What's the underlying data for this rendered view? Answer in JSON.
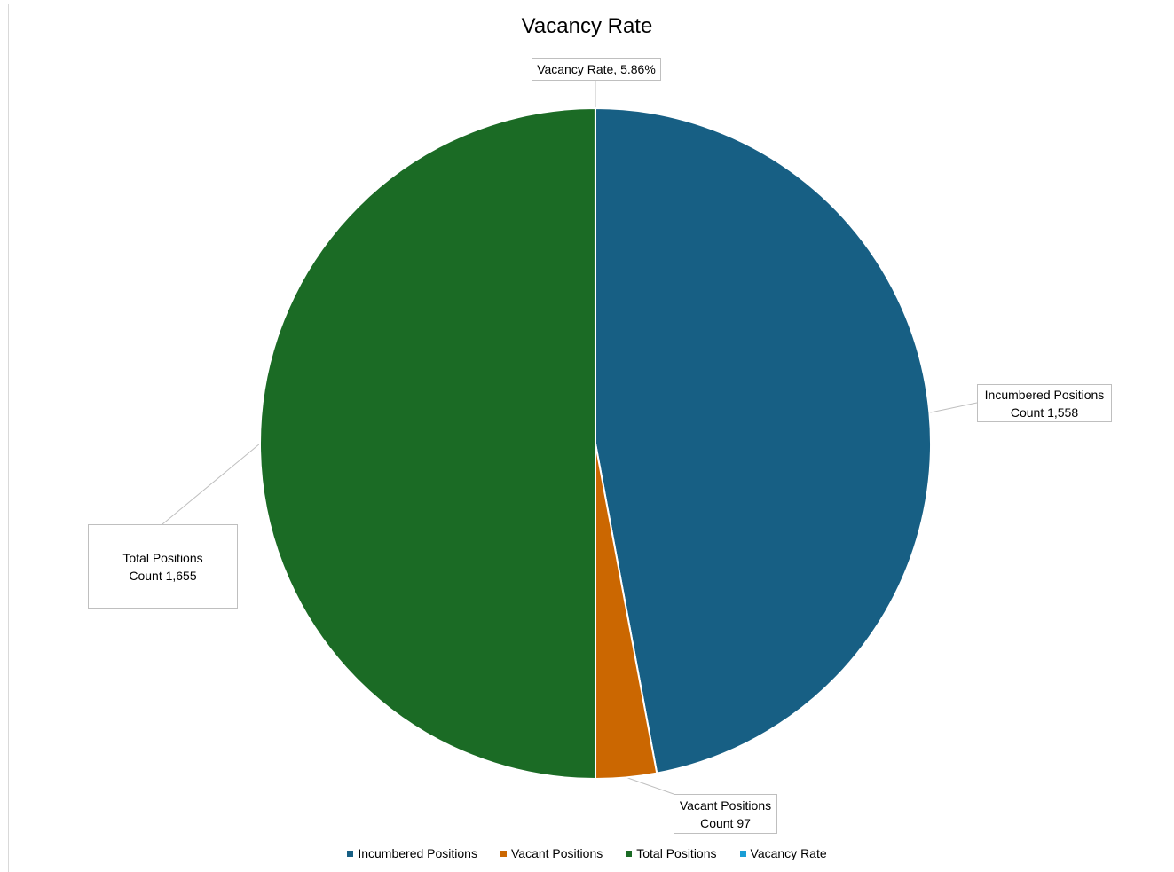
{
  "chart_data": {
    "type": "pie",
    "title": "Vacancy Rate",
    "series": [
      {
        "name": "Incumbered Positions",
        "value": 1558,
        "label_line1": "Incumbered Positions",
        "label_line2": "Count 1,558",
        "color": "#175f84"
      },
      {
        "name": "Vacant Positions",
        "value": 97,
        "label_line1": "Vacant Positions",
        "label_line2": "Count 97",
        "color": "#cb6701"
      },
      {
        "name": "Total Positions",
        "value": 1655,
        "label_line1": "Total Positions",
        "label_line2": "Count 1,655",
        "color": "#1b6b25"
      },
      {
        "name": "Vacancy Rate",
        "value": 0.0586,
        "label_line1": "Vacancy Rate, 5.86%",
        "label_line2": "",
        "color": "#1a9ed6"
      }
    ],
    "legend_position": "bottom"
  }
}
